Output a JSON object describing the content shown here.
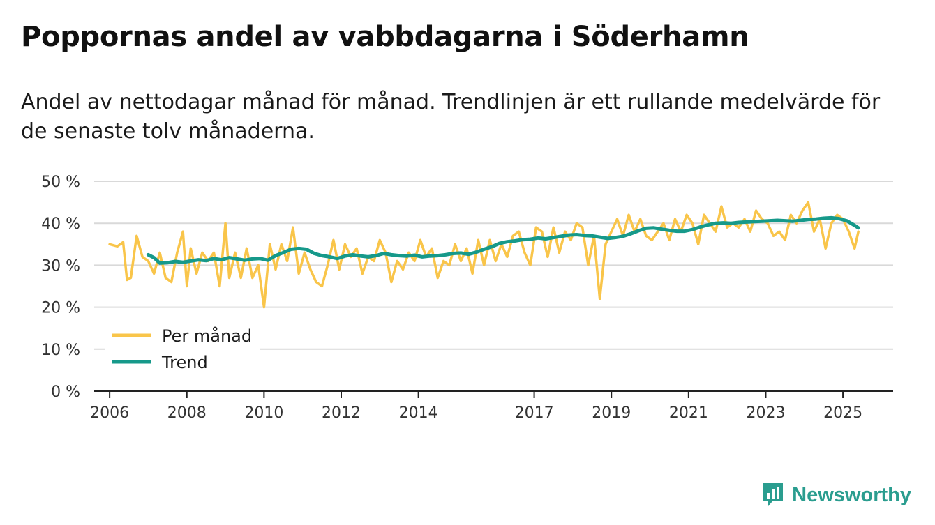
{
  "title": "Poppornas andel av vabbdagarna i Söderhamn",
  "subtitle": "Andel av nettodagar månad för månad. Trendlinjen är ett rullande medelvärde för de senaste tolv månaderna.",
  "brand": {
    "name": "Newsworthy",
    "icon": "newsworthy-logo-icon",
    "color": "#2a9d8f"
  },
  "chart_data": {
    "type": "line",
    "title": "Poppornas andel av vabbdagarna i Söderhamn",
    "xlabel": "",
    "ylabel": "",
    "ylim": [
      0,
      50
    ],
    "xlim": [
      2005.6,
      2026.3
    ],
    "grid": true,
    "legend_position": "bottom-left",
    "y_ticks": [
      0,
      10,
      20,
      30,
      40,
      50
    ],
    "y_tick_labels": [
      "0 %",
      "10 %",
      "20 %",
      "30 %",
      "40 %",
      "50 %"
    ],
    "x_ticks": [
      2006,
      2008,
      2010,
      2012,
      2014,
      2017,
      2019,
      2021,
      2023,
      2025
    ],
    "x_tick_labels": [
      "2006",
      "2008",
      "2010",
      "2012",
      "2014",
      "2017",
      "2019",
      "2021",
      "2023",
      "2025"
    ],
    "series": [
      {
        "name": "Per månad",
        "color": "#f9c54a",
        "x": [
          2006.0,
          2006.2,
          2006.35,
          2006.45,
          2006.55,
          2006.7,
          2006.85,
          2007.0,
          2007.15,
          2007.3,
          2007.45,
          2007.6,
          2007.75,
          2007.9,
          2008.0,
          2008.1,
          2008.25,
          2008.4,
          2008.55,
          2008.7,
          2008.85,
          2009.0,
          2009.1,
          2009.25,
          2009.4,
          2009.55,
          2009.7,
          2009.85,
          2010.0,
          2010.15,
          2010.3,
          2010.45,
          2010.6,
          2010.75,
          2010.9,
          2011.05,
          2011.2,
          2011.35,
          2011.5,
          2011.65,
          2011.8,
          2011.95,
          2012.1,
          2012.25,
          2012.4,
          2012.55,
          2012.7,
          2012.85,
          2013.0,
          2013.15,
          2013.3,
          2013.45,
          2013.6,
          2013.75,
          2013.9,
          2014.05,
          2014.2,
          2014.35,
          2014.5,
          2014.65,
          2014.8,
          2014.95,
          2015.1,
          2015.25,
          2015.4,
          2015.55,
          2015.7,
          2015.85,
          2016.0,
          2016.15,
          2016.3,
          2016.45,
          2016.6,
          2016.75,
          2016.9,
          2017.05,
          2017.2,
          2017.35,
          2017.5,
          2017.65,
          2017.8,
          2017.95,
          2018.1,
          2018.25,
          2018.4,
          2018.55,
          2018.7,
          2018.85,
          2019.0,
          2019.15,
          2019.3,
          2019.45,
          2019.6,
          2019.75,
          2019.9,
          2020.05,
          2020.2,
          2020.35,
          2020.5,
          2020.65,
          2020.8,
          2020.95,
          2021.1,
          2021.25,
          2021.4,
          2021.55,
          2021.7,
          2021.85,
          2022.0,
          2022.15,
          2022.3,
          2022.45,
          2022.6,
          2022.75,
          2022.9,
          2023.05,
          2023.2,
          2023.35,
          2023.5,
          2023.65,
          2023.8,
          2023.95,
          2024.1,
          2024.25,
          2024.4,
          2024.55,
          2024.7,
          2024.85,
          2025.0,
          2025.15,
          2025.3,
          2025.4
        ],
        "values": [
          35,
          34.5,
          35.5,
          26.5,
          27,
          37,
          32,
          31,
          28,
          33,
          27,
          26,
          33,
          38,
          25,
          34,
          28,
          33,
          31,
          33,
          25,
          40,
          27,
          33,
          27,
          34,
          27,
          30,
          20,
          35,
          29,
          35,
          31,
          39,
          28,
          33,
          29,
          26,
          25,
          30,
          36,
          29,
          35,
          32,
          34,
          28,
          32,
          31,
          36,
          33,
          26,
          31,
          29,
          33,
          31,
          36,
          32,
          34,
          27,
          31,
          30,
          35,
          31,
          34,
          28,
          36,
          30,
          36,
          31,
          35,
          32,
          37,
          38,
          33,
          30,
          39,
          38,
          32,
          39,
          33,
          38,
          36,
          40,
          39,
          30,
          37,
          22,
          35,
          38,
          41,
          37,
          42,
          38,
          41,
          37,
          36,
          38,
          40,
          36,
          41,
          38,
          42,
          40,
          35,
          42,
          40,
          38,
          44,
          39,
          40,
          39,
          41,
          38,
          43,
          41,
          40,
          37,
          38,
          36,
          42,
          40,
          43,
          45,
          38,
          41,
          34,
          40,
          42,
          41,
          38,
          34,
          38
        ]
      },
      {
        "name": "Trend",
        "color": "#16998a",
        "x": [
          2007.0,
          2007.15,
          2007.3,
          2007.5,
          2007.7,
          2007.9,
          2008.1,
          2008.3,
          2008.5,
          2008.7,
          2008.9,
          2009.1,
          2009.3,
          2009.5,
          2009.7,
          2009.9,
          2010.1,
          2010.3,
          2010.5,
          2010.7,
          2010.9,
          2011.1,
          2011.3,
          2011.5,
          2011.7,
          2011.9,
          2012.1,
          2012.3,
          2012.5,
          2012.7,
          2012.9,
          2013.1,
          2013.3,
          2013.5,
          2013.7,
          2013.9,
          2014.1,
          2014.3,
          2014.5,
          2014.7,
          2014.9,
          2015.1,
          2015.3,
          2015.5,
          2015.7,
          2015.9,
          2016.1,
          2016.3,
          2016.5,
          2016.7,
          2016.9,
          2017.1,
          2017.3,
          2017.5,
          2017.7,
          2017.9,
          2018.1,
          2018.3,
          2018.5,
          2018.7,
          2018.9,
          2019.1,
          2019.3,
          2019.5,
          2019.7,
          2019.9,
          2020.1,
          2020.3,
          2020.5,
          2020.7,
          2020.9,
          2021.1,
          2021.3,
          2021.5,
          2021.7,
          2021.9,
          2022.1,
          2022.3,
          2022.5,
          2022.7,
          2022.9,
          2023.1,
          2023.3,
          2023.5,
          2023.7,
          2023.9,
          2024.1,
          2024.3,
          2024.5,
          2024.7,
          2024.9,
          2025.1,
          2025.3,
          2025.4
        ],
        "values": [
          32.5,
          31.8,
          30.5,
          30.6,
          30.9,
          30.7,
          31,
          31.3,
          31.1,
          31.6,
          31.3,
          31.8,
          31.5,
          31.2,
          31.5,
          31.6,
          31.2,
          32.3,
          33,
          33.8,
          34,
          33.8,
          32.8,
          32.3,
          32,
          31.6,
          32.2,
          32.5,
          32.2,
          32.0,
          32.3,
          32.8,
          32.5,
          32.3,
          32.2,
          32.4,
          32.0,
          32.2,
          32.3,
          32.5,
          32.8,
          32.9,
          32.6,
          33.1,
          33.8,
          34.4,
          35.2,
          35.6,
          35.8,
          36.1,
          36.2,
          36.5,
          36.3,
          36.6,
          36.9,
          37.2,
          37.3,
          37.1,
          37.0,
          36.7,
          36.4,
          36.6,
          36.9,
          37.5,
          38.2,
          38.8,
          38.9,
          38.6,
          38.3,
          38.1,
          38.1,
          38.5,
          39.1,
          39.6,
          40.0,
          40.1,
          40.0,
          40.2,
          40.3,
          40.4,
          40.5,
          40.6,
          40.7,
          40.6,
          40.5,
          40.7,
          40.9,
          41.0,
          41.2,
          41.3,
          41.1,
          40.6,
          39.5,
          38.9
        ]
      }
    ]
  }
}
